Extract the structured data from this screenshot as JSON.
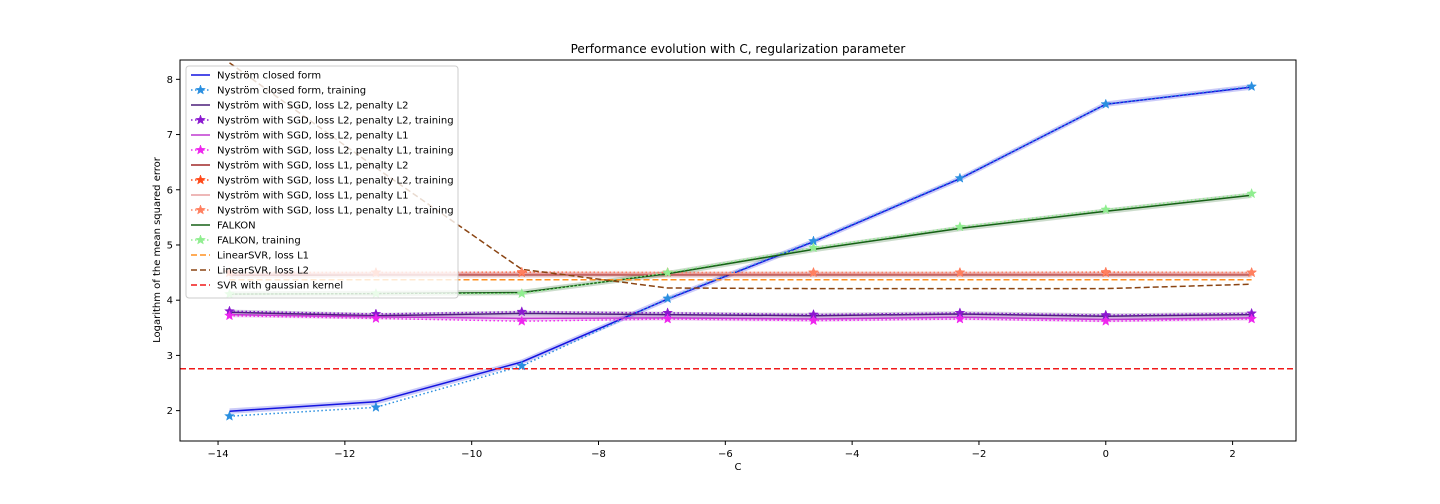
{
  "chart_data": {
    "type": "line",
    "title": "Performance evolution with C, regularization parameter",
    "xlabel": "C",
    "ylabel": "Logarithm of the mean squared error",
    "xlim": [
      -14.6,
      3.0
    ],
    "ylim": [
      1.45,
      8.35
    ],
    "xticks": [
      -14,
      -12,
      -10,
      -8,
      -6,
      -4,
      -2,
      0,
      2
    ],
    "xtick_labels": [
      "−14",
      "−12",
      "−10",
      "−8",
      "−6",
      "−4",
      "−2",
      "0",
      "2"
    ],
    "yticks": [
      2,
      3,
      4,
      5,
      6,
      7,
      8
    ],
    "ytick_labels": [
      "2",
      "3",
      "4",
      "5",
      "6",
      "7",
      "8"
    ],
    "grid": false,
    "legend_position": "upper-left",
    "x": [
      -13.82,
      -11.51,
      -9.21,
      -6.91,
      -4.61,
      -2.3,
      0.0,
      2.3
    ],
    "series": [
      {
        "name": "Nyström closed form",
        "color": "#1414e0",
        "style": "solid",
        "marker": "none",
        "band": true,
        "values": [
          1.99,
          2.16,
          2.88,
          4.02,
          5.06,
          6.2,
          7.55,
          7.86
        ]
      },
      {
        "name": "Nyström closed form, training",
        "color": "#2a8fe0",
        "style": "dotted",
        "marker": "star",
        "values": [
          1.9,
          2.06,
          2.81,
          4.03,
          5.07,
          6.21,
          7.55,
          7.87
        ]
      },
      {
        "name": "Nyström with SGD, loss L2, penalty L2",
        "color": "#4b1f7a",
        "style": "solid",
        "marker": "none",
        "band": true,
        "values": [
          3.78,
          3.72,
          3.76,
          3.74,
          3.72,
          3.75,
          3.71,
          3.74
        ]
      },
      {
        "name": "Nyström with SGD, loss L2, penalty L2, training",
        "color": "#8b18d0",
        "style": "dotted",
        "marker": "star",
        "values": [
          3.8,
          3.75,
          3.79,
          3.77,
          3.74,
          3.77,
          3.73,
          3.76
        ]
      },
      {
        "name": "Nyström with SGD, loss L2, penalty L1",
        "color": "#c03ad0",
        "style": "solid",
        "marker": "none",
        "band": true,
        "values": [
          3.74,
          3.7,
          3.67,
          3.68,
          3.66,
          3.69,
          3.65,
          3.68
        ]
      },
      {
        "name": "Nyström with SGD, loss L2, penalty L1, training",
        "color": "#ee25ee",
        "style": "dotted",
        "marker": "star",
        "values": [
          3.72,
          3.67,
          3.62,
          3.66,
          3.63,
          3.66,
          3.62,
          3.66
        ]
      },
      {
        "name": "Nyström with SGD, loss L1, penalty L2",
        "color": "#a02828",
        "style": "solid",
        "marker": "none",
        "band": true,
        "values": [
          4.45,
          4.46,
          4.46,
          4.46,
          4.46,
          4.46,
          4.46,
          4.46
        ]
      },
      {
        "name": "Nyström with SGD, loss L1, penalty L2, training",
        "color": "#ff4a1a",
        "style": "dotted",
        "marker": "star",
        "values": [
          4.5,
          4.5,
          4.5,
          4.5,
          4.5,
          4.5,
          4.5,
          4.5
        ]
      },
      {
        "name": "Nyström with SGD, loss L1, penalty L1",
        "color": "#e8a0a0",
        "style": "solid",
        "marker": "none",
        "band": true,
        "values": [
          4.48,
          4.48,
          4.48,
          4.48,
          4.48,
          4.48,
          4.48,
          4.48
        ]
      },
      {
        "name": "Nyström with SGD, loss L1, penalty L1, training",
        "color": "#ff8060",
        "style": "dotted",
        "marker": "star",
        "values": [
          4.5,
          4.5,
          4.51,
          4.5,
          4.5,
          4.5,
          4.51,
          4.5
        ]
      },
      {
        "name": "FALKON",
        "color": "#166016",
        "style": "solid",
        "marker": "none",
        "band": true,
        "values": [
          4.11,
          4.12,
          4.14,
          4.48,
          4.92,
          5.3,
          5.61,
          5.9
        ]
      },
      {
        "name": "FALKON, training",
        "color": "#90ee90",
        "style": "dotted",
        "marker": "star",
        "values": [
          4.11,
          4.12,
          4.12,
          4.5,
          4.95,
          5.33,
          5.64,
          5.93
        ]
      },
      {
        "name": "LinearSVR, loss L1",
        "color": "#ff9020",
        "style": "dashed",
        "marker": "none",
        "values": [
          4.37,
          4.37,
          4.37,
          4.37,
          4.37,
          4.37,
          4.37,
          4.37
        ]
      },
      {
        "name": "LinearSVR, loss L2",
        "color": "#8b4513",
        "style": "dashed",
        "marker": "none",
        "values": [
          8.3,
          6.4,
          4.56,
          4.22,
          4.21,
          4.21,
          4.21,
          4.29
        ]
      },
      {
        "name": "SVR with gaussian kernel",
        "color": "#f01818",
        "style": "dashed",
        "marker": "none",
        "hline": true,
        "values": [
          2.76,
          2.76,
          2.76,
          2.76,
          2.76,
          2.76,
          2.76,
          2.76
        ]
      }
    ]
  }
}
